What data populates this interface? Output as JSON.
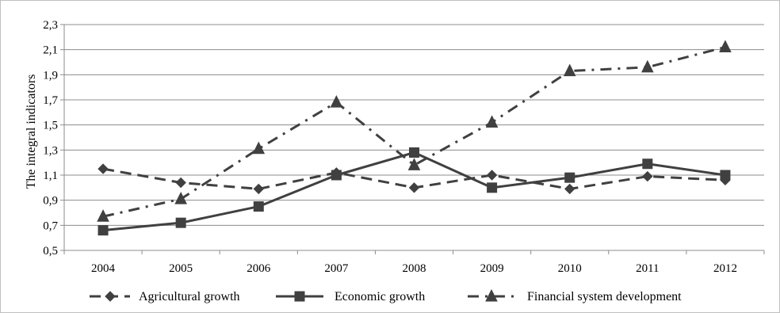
{
  "chart_data": {
    "type": "line",
    "title": "",
    "xlabel": "",
    "ylabel": "The integral indicators",
    "categories": [
      "2004",
      "2005",
      "2006",
      "2007",
      "2008",
      "2009",
      "2010",
      "2011",
      "2012"
    ],
    "y_ticks": [
      "0,5",
      "0,7",
      "0,9",
      "1,1",
      "1,3",
      "1,5",
      "1,7",
      "1,9",
      "2,1",
      "2,3"
    ],
    "ylim": [
      0.5,
      2.3
    ],
    "grid": "horizontal",
    "legend_position": "bottom",
    "series": [
      {
        "name": "Agricultural growth",
        "marker": "diamond",
        "line_style": "dashed",
        "color": "#404040",
        "values": [
          1.15,
          1.04,
          0.99,
          1.12,
          1.0,
          1.1,
          0.99,
          1.09,
          1.06
        ]
      },
      {
        "name": "Economic growth",
        "marker": "square",
        "line_style": "solid",
        "color": "#404040",
        "values": [
          0.66,
          0.72,
          0.85,
          1.1,
          1.28,
          1.0,
          1.08,
          1.19,
          1.1
        ]
      },
      {
        "name": "Financial system development",
        "marker": "triangle",
        "line_style": "dash-dot",
        "color": "#404040",
        "values": [
          0.77,
          0.91,
          1.31,
          1.68,
          1.18,
          1.52,
          1.93,
          1.96,
          2.12
        ]
      }
    ]
  }
}
